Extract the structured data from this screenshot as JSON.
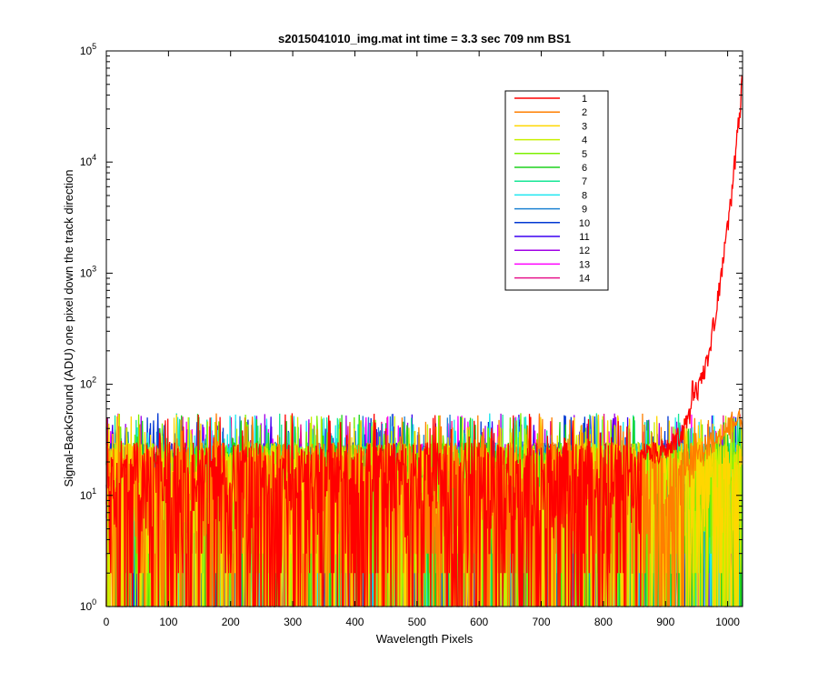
{
  "chart_data": {
    "type": "line",
    "title": "s2015041010_img.mat int time = 3.3 sec  709 nm BS1",
    "xlabel": "Wavelength Pixels",
    "ylabel": "Signal-BackGround (ADU) one pixel down the track direction",
    "x_scale": "linear",
    "y_scale": "log",
    "xlim": [
      0,
      1024
    ],
    "ylim": [
      1,
      100000
    ],
    "x_ticks": [
      0,
      100,
      200,
      300,
      400,
      500,
      600,
      700,
      800,
      900,
      1000
    ],
    "y_ticks": [
      {
        "value": 1,
        "base": "10",
        "exp": "0"
      },
      {
        "value": 10,
        "base": "10",
        "exp": "1"
      },
      {
        "value": 100,
        "base": "10",
        "exp": "2"
      },
      {
        "value": 1000,
        "base": "10",
        "exp": "3"
      },
      {
        "value": 10000,
        "base": "10",
        "exp": "4"
      },
      {
        "value": 100000,
        "base": "10",
        "exp": "5"
      }
    ],
    "grid": false,
    "legend_position": "top-right",
    "n_points": 1024,
    "noise_profile": "values fluctuate between 1 and ~55 ADU across pixels 0-1024; series 1 rises from ~30 ADU near pixel 880 to ~100 ADU near 960 and ~50000 ADU at pixel 1023; series 2 rises to ~60 ADU near pixel 1020",
    "series": [
      {
        "name": "1",
        "color": "#ff0000",
        "typical_range": [
          1,
          55
        ],
        "end_value": 50000
      },
      {
        "name": "2",
        "color": "#ff7f00",
        "typical_range": [
          1,
          55
        ],
        "end_value": 60
      },
      {
        "name": "3",
        "color": "#ffd700",
        "typical_range": [
          1,
          50
        ]
      },
      {
        "name": "4",
        "color": "#c8f000",
        "typical_range": [
          1,
          50
        ]
      },
      {
        "name": "5",
        "color": "#7cf000",
        "typical_range": [
          1,
          50
        ]
      },
      {
        "name": "6",
        "color": "#1ed21e",
        "typical_range": [
          1,
          50
        ]
      },
      {
        "name": "7",
        "color": "#16e696",
        "typical_range": [
          1,
          50
        ]
      },
      {
        "name": "8",
        "color": "#1ee6f0",
        "typical_range": [
          1,
          50
        ]
      },
      {
        "name": "9",
        "color": "#1e82d2",
        "typical_range": [
          1,
          50
        ]
      },
      {
        "name": "10",
        "color": "#0037d2",
        "typical_range": [
          1,
          50
        ]
      },
      {
        "name": "11",
        "color": "#3c00f0",
        "typical_range": [
          1,
          50
        ]
      },
      {
        "name": "12",
        "color": "#a000e6",
        "typical_range": [
          1,
          50
        ]
      },
      {
        "name": "13",
        "color": "#ff00ff",
        "typical_range": [
          1,
          50
        ]
      },
      {
        "name": "14",
        "color": "#e6148c",
        "typical_range": [
          1,
          50
        ]
      }
    ]
  }
}
